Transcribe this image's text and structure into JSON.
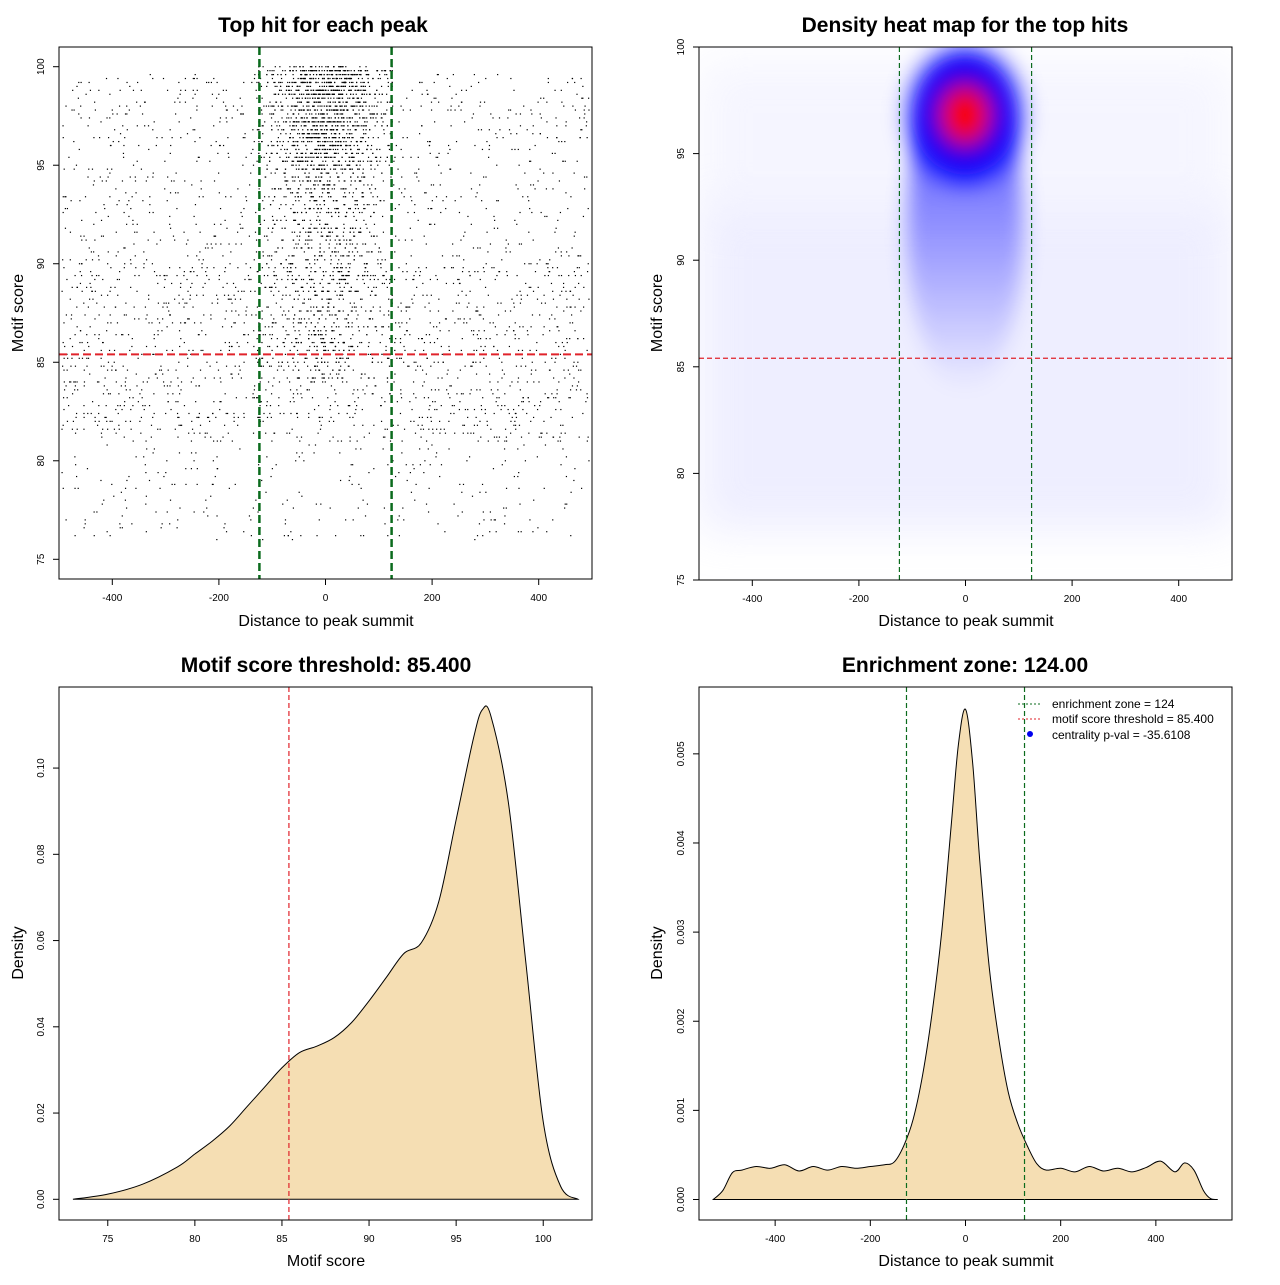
{
  "colors": {
    "threshold_line": "#e0232b",
    "zone_line": "#0b6b1d",
    "density_fill": "#f5deb3",
    "heat_low": "#ffffff",
    "heat_mid": "#0000ff",
    "heat_high": "#ff0000",
    "points": "#000000",
    "legend_dot": "#0000ee"
  },
  "chart_data": [
    {
      "type": "scatter",
      "title": "Top hit for each peak",
      "xlabel": "Distance to peak summit",
      "ylabel": "Motif score",
      "xlim": [
        -500,
        500
      ],
      "ylim": [
        74,
        101
      ],
      "xticks": [
        -400,
        -200,
        0,
        200,
        400
      ],
      "yticks": [
        75,
        80,
        85,
        90,
        95,
        100
      ],
      "xtick_labels": [
        "-400",
        "-200",
        "0",
        "200",
        "400"
      ],
      "ytick_labels": [
        "75",
        "80",
        "85",
        "90",
        "95",
        "100"
      ],
      "hlines": [
        85.4
      ],
      "vlines": [
        -124,
        124
      ],
      "point_description": "about 5000 points; uniform background over x in [-490, 490] with scores mostly 77-100; dense central cluster within roughly ±120 of the summit with scores concentrated 88-100",
      "grid": false
    },
    {
      "type": "heatmap",
      "title": "Density heat map for the top hits",
      "xlabel": "Distance to peak summit",
      "ylabel": "Motif score",
      "xlim": [
        -500,
        500
      ],
      "ylim": [
        75,
        100
      ],
      "xticks": [
        -400,
        -200,
        0,
        200,
        400
      ],
      "yticks": [
        75,
        80,
        85,
        90,
        95,
        100
      ],
      "xtick_labels": [
        "-400",
        "-200",
        "0",
        "200",
        "400"
      ],
      "ytick_labels": [
        "75",
        "80",
        "85",
        "90",
        "95",
        "100"
      ],
      "hlines": [
        85.4
      ],
      "vlines": [
        -124,
        124
      ],
      "peak": {
        "x": 0,
        "y": 97
      },
      "color_scale": [
        "white",
        "blue",
        "red"
      ],
      "grid": false
    },
    {
      "type": "area",
      "title": "Motif score threshold: 85.400",
      "xlabel": "Motif score",
      "ylabel": "Density",
      "xlim": [
        72.2,
        102.8
      ],
      "ylim": [
        -0.0048,
        0.1188
      ],
      "xticks": [
        75,
        80,
        85,
        90,
        95,
        100
      ],
      "yticks": [
        0.0,
        0.02,
        0.04,
        0.06,
        0.08,
        0.1
      ],
      "xtick_labels": [
        "75",
        "80",
        "85",
        "90",
        "95",
        "100"
      ],
      "ytick_labels": [
        "0.00",
        "0.02",
        "0.04",
        "0.06",
        "0.08",
        "0.10"
      ],
      "vlines": [
        85.4
      ],
      "x": [
        73.0,
        75.0,
        77.0,
        79.0,
        80.0,
        81.0,
        82.0,
        83.0,
        84.0,
        85.0,
        86.0,
        87.0,
        88.0,
        89.0,
        90.0,
        91.0,
        92.0,
        93.0,
        94.0,
        95.0,
        96.0,
        96.5,
        97.0,
        98.0,
        99.0,
        100.0,
        101.0,
        102.0
      ],
      "y": [
        0.0,
        0.0012,
        0.0035,
        0.0075,
        0.0105,
        0.0135,
        0.017,
        0.0215,
        0.026,
        0.0305,
        0.034,
        0.0355,
        0.0375,
        0.041,
        0.046,
        0.0515,
        0.057,
        0.0595,
        0.069,
        0.088,
        0.107,
        0.1135,
        0.112,
        0.092,
        0.055,
        0.018,
        0.003,
        0.0
      ],
      "grid": false
    },
    {
      "type": "area",
      "title": "Enrichment zone: 124.00",
      "xlabel": "Distance to peak summit",
      "ylabel": "Density",
      "xlim": [
        -560,
        560
      ],
      "ylim": [
        -0.00023,
        0.00575
      ],
      "xticks": [
        -400,
        -200,
        0,
        200,
        400
      ],
      "yticks": [
        0.0,
        0.001,
        0.002,
        0.003,
        0.004,
        0.005
      ],
      "xtick_labels": [
        "-400",
        "-200",
        "0",
        "200",
        "400"
      ],
      "ytick_labels": [
        "0.000",
        "0.001",
        "0.002",
        "0.003",
        "0.004",
        "0.005"
      ],
      "vlines": [
        -124,
        124
      ],
      "x": [
        -530,
        -510,
        -490,
        -470,
        -440,
        -410,
        -380,
        -350,
        -320,
        -290,
        -260,
        -230,
        -200,
        -170,
        -150,
        -130,
        -110,
        -90,
        -70,
        -50,
        -30,
        -15,
        0,
        15,
        30,
        50,
        70,
        90,
        110,
        130,
        150,
        170,
        200,
        230,
        260,
        290,
        320,
        350,
        380,
        410,
        440,
        460,
        480,
        500,
        515,
        530
      ],
      "y": [
        0.0,
        0.0001,
        0.0003,
        0.00033,
        0.00037,
        0.00035,
        0.00039,
        0.00032,
        0.00037,
        0.00033,
        0.00037,
        0.00035,
        0.00037,
        0.00039,
        0.00042,
        0.0006,
        0.0009,
        0.0014,
        0.0021,
        0.003,
        0.0042,
        0.0051,
        0.0055,
        0.0049,
        0.0038,
        0.0026,
        0.0018,
        0.0012,
        0.00085,
        0.0006,
        0.0004,
        0.00033,
        0.00035,
        0.00031,
        0.00037,
        0.00032,
        0.00035,
        0.00031,
        0.00036,
        0.00043,
        0.00031,
        0.00041,
        0.00033,
        0.0001,
        1e-05,
        0.0
      ],
      "legend": {
        "position": "top-right",
        "entries": [
          "enrichment zone = 124",
          "motif score threshold = 85.400",
          "centrality p-val = -35.6108"
        ]
      },
      "grid": false
    }
  ]
}
